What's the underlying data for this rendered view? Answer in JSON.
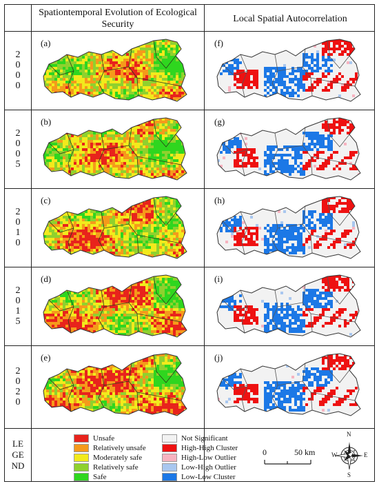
{
  "header": {
    "left_title": "Spationtemporal Evolution of Ecological Security",
    "right_title": "Local Spatial Autocorrelation"
  },
  "rows": [
    {
      "year_digits": [
        "2",
        "0",
        "0",
        "0"
      ],
      "left_tag": "(a)",
      "right_tag": "(f)"
    },
    {
      "year_digits": [
        "2",
        "0",
        "0",
        "5"
      ],
      "left_tag": "(b)",
      "right_tag": "(g)"
    },
    {
      "year_digits": [
        "2",
        "0",
        "1",
        "0"
      ],
      "left_tag": "(c)",
      "right_tag": "(h)"
    },
    {
      "year_digits": [
        "2",
        "0",
        "1",
        "5"
      ],
      "left_tag": "(d)",
      "right_tag": "(i)"
    },
    {
      "year_digits": [
        "2",
        "0",
        "2",
        "0"
      ],
      "left_tag": "(e)",
      "right_tag": "(j)"
    }
  ],
  "legend": {
    "label_lines": [
      "LE",
      "GE",
      "ND"
    ],
    "security_classes": [
      {
        "label": "Unsafe",
        "color": "#e8231c"
      },
      {
        "label": "Relatively unsafe",
        "color": "#f59a1b"
      },
      {
        "label": "Moderately safe",
        "color": "#f2ea1c"
      },
      {
        "label": "Relatively safe",
        "color": "#8fd12e"
      },
      {
        "label": "Safe",
        "color": "#2fd61f"
      }
    ],
    "lisa_classes": [
      {
        "label": "Not Significant",
        "color": "#f2f2f2"
      },
      {
        "label": "High-High Cluster",
        "color": "#ee1111"
      },
      {
        "label": "High-Low Outlier",
        "color": "#f7b3c0"
      },
      {
        "label": "Low-High Outlier",
        "color": "#a9c7ef"
      },
      {
        "label": "Low-Low Cluster",
        "color": "#1c78e6"
      }
    ],
    "scale_start": "0",
    "scale_end": "50 km",
    "compass": {
      "n": "N",
      "s": "S",
      "e": "E",
      "w": "W"
    }
  }
}
